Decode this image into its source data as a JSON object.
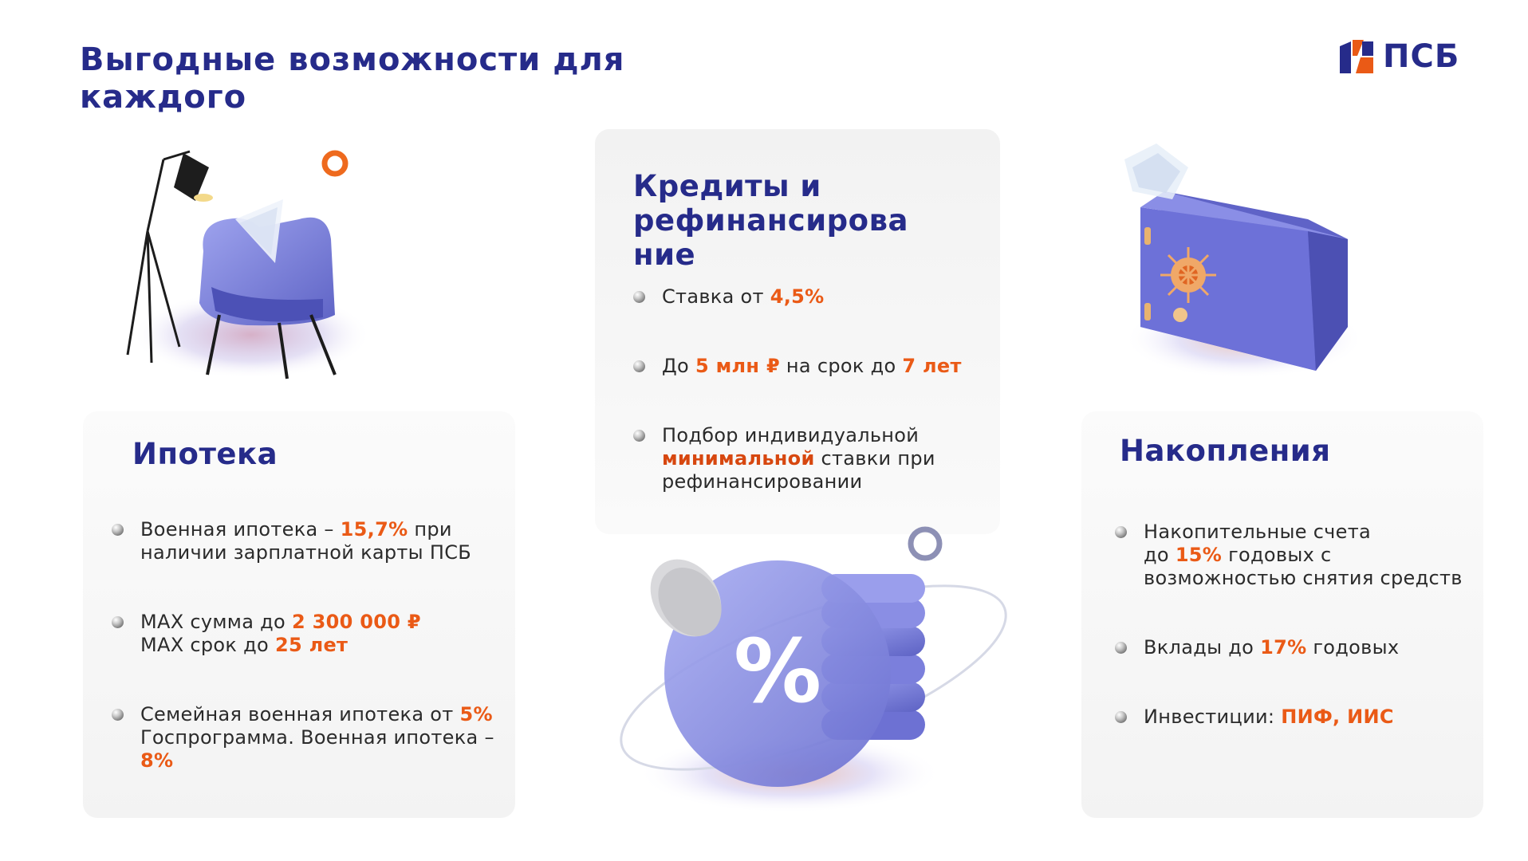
{
  "header": {
    "title_line1": "Выгодные возможности для",
    "title_line2": "каждого",
    "logo_text": "ПСБ"
  },
  "colors": {
    "brand": "#262b8a",
    "accent": "#ea5a16",
    "card_bg": "#f5f5f5",
    "illustration_purple": "#7b7fdc"
  },
  "ipoteka": {
    "title": "Ипотека",
    "item1": {
      "a": "Военная ипотека – ",
      "b": "15,7%",
      "c": " при",
      "d": "наличии зарплатной карты ПСБ"
    },
    "item2": {
      "a": "MAX сумма до ",
      "b": "2 300 000 ₽",
      "c": "MAX срок до ",
      "d": "25 лет"
    },
    "item3": {
      "a": "Семейная военная ипотека от ",
      "b": "5%",
      "c": "Госпрограмма. Военная ипотека –",
      "d": "8%"
    }
  },
  "credit": {
    "title_line1": "Кредиты и",
    "title_line2": "рефинансирова",
    "title_line3": "ние",
    "item1": {
      "a": "Ставка от ",
      "b": "4,5%"
    },
    "item2": {
      "a": "До ",
      "b": "5 млн ₽",
      "c": " на срок до ",
      "d": "7 лет"
    },
    "item3": {
      "a": "Подбор индивидуальной",
      "b": "минимальной",
      "c": " ставки при",
      "d": "рефинансировании"
    }
  },
  "savings": {
    "title": "Накопления",
    "item1": {
      "a": "Накопительные счета",
      "b": "до ",
      "c": "15%",
      "d": " годовых с",
      "e": "возможностью снятия средств"
    },
    "item2": {
      "a": "Вклады до ",
      "b": "17%",
      "c": " годовых"
    },
    "item3": {
      "a": "Инвестиции: ",
      "b": "ПИФ, ИИС"
    }
  },
  "illustrations": {
    "chair": "armchair-with-floor-lamp-illustration",
    "coins": "percent-coin-stack-illustration",
    "safe": "safe-box-illustration",
    "percent_symbol": "%"
  }
}
